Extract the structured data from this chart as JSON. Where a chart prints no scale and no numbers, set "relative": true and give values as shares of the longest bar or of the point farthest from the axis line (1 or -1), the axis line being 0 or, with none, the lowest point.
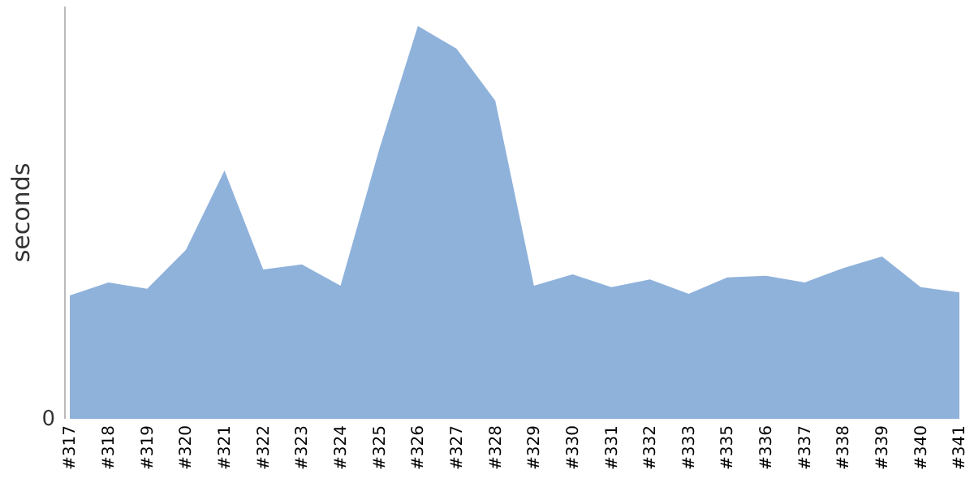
{
  "chart_data": {
    "type": "area",
    "ylabel": "seconds",
    "relative": true,
    "annotations": [
      "0"
    ],
    "color": "#8fb2db",
    "categories": [
      "#317",
      "#318",
      "#319",
      "#320",
      "#321",
      "#322",
      "#323",
      "#324",
      "#325",
      "#326",
      "#327",
      "#328",
      "#329",
      "#330",
      "#331",
      "#332",
      "#333",
      "#335",
      "#336",
      "#337",
      "#338",
      "#339",
      "#340",
      "#341"
    ],
    "values": [
      0.314,
      0.347,
      0.331,
      0.43,
      0.632,
      0.38,
      0.393,
      0.339,
      0.686,
      1,
      0.942,
      0.81,
      0.339,
      0.368,
      0.335,
      0.355,
      0.318,
      0.36,
      0.364,
      0.347,
      0.384,
      0.413,
      0.335,
      0.322
    ]
  }
}
